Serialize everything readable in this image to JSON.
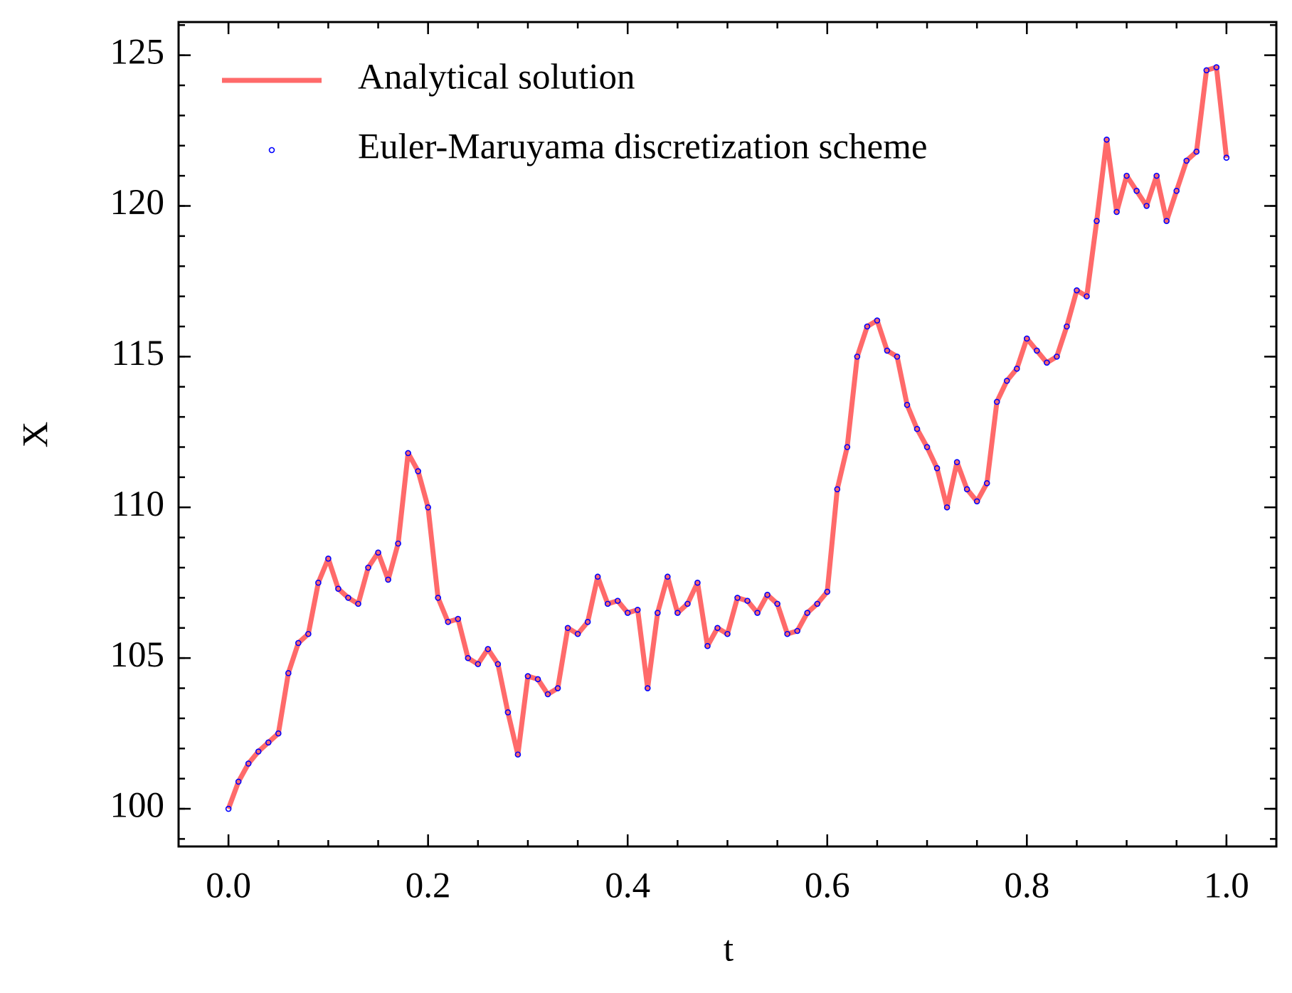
{
  "chart_data": {
    "type": "line",
    "xlabel": "t",
    "ylabel": "X",
    "x": [
      0,
      0.01,
      0.02,
      0.03,
      0.04,
      0.05,
      0.06,
      0.07,
      0.08,
      0.09,
      0.1,
      0.11,
      0.12,
      0.13,
      0.14,
      0.15,
      0.16,
      0.17,
      0.18,
      0.19,
      0.2,
      0.21,
      0.22,
      0.23,
      0.24,
      0.25,
      0.26,
      0.27,
      0.28,
      0.29,
      0.3,
      0.31,
      0.32,
      0.33,
      0.34,
      0.35,
      0.36,
      0.37,
      0.38,
      0.39,
      0.4,
      0.41,
      0.42,
      0.43,
      0.44,
      0.45,
      0.46,
      0.47,
      0.48,
      0.49,
      0.5,
      0.51,
      0.52,
      0.53,
      0.54,
      0.55,
      0.56,
      0.57,
      0.58,
      0.59,
      0.6,
      0.61,
      0.62,
      0.63,
      0.64,
      0.65,
      0.66,
      0.67,
      0.68,
      0.69,
      0.7,
      0.71,
      0.72,
      0.73,
      0.74,
      0.75,
      0.76,
      0.77,
      0.78,
      0.79,
      0.8,
      0.81,
      0.82,
      0.83,
      0.84,
      0.85,
      0.86,
      0.87,
      0.88,
      0.89,
      0.9,
      0.91,
      0.92,
      0.93,
      0.94,
      0.95,
      0.96,
      0.97,
      0.98,
      0.99,
      1.0
    ],
    "series": [
      {
        "name": "Analytical solution",
        "kind": "line",
        "color": "#ff5a5a",
        "values": [
          100,
          100.9,
          101.5,
          101.9,
          102.2,
          102.5,
          104.5,
          105.5,
          105.8,
          107.5,
          108.3,
          107.3,
          107.0,
          106.8,
          108.0,
          108.5,
          107.6,
          108.8,
          111.8,
          111.2,
          110.0,
          107.0,
          106.2,
          106.3,
          105.0,
          104.8,
          105.3,
          104.8,
          103.2,
          101.8,
          104.4,
          104.3,
          103.8,
          104.0,
          106.0,
          105.8,
          106.2,
          107.7,
          106.8,
          106.9,
          106.5,
          106.6,
          104.0,
          106.5,
          107.7,
          106.5,
          106.8,
          107.5,
          105.4,
          106.0,
          105.8,
          107.0,
          106.9,
          106.5,
          107.1,
          106.8,
          105.8,
          105.9,
          106.5,
          106.8,
          107.2,
          110.6,
          112.0,
          115.0,
          116.0,
          116.2,
          115.2,
          115.0,
          113.4,
          112.6,
          112.0,
          111.3,
          110.0,
          111.5,
          110.6,
          110.2,
          110.8,
          113.5,
          114.2,
          114.6,
          115.6,
          115.2,
          114.8,
          115.0,
          116.0,
          117.2,
          117.0,
          119.5,
          122.2,
          119.8,
          121.0,
          120.5,
          120.0,
          121.0,
          119.5,
          120.5,
          121.5,
          121.8,
          124.5,
          124.6,
          121.6
        ]
      },
      {
        "name": "Euler-Maruyama discretization scheme",
        "kind": "scatter",
        "color": "#0000ff",
        "values": [
          100,
          100.9,
          101.5,
          101.9,
          102.2,
          102.5,
          104.5,
          105.5,
          105.8,
          107.5,
          108.3,
          107.3,
          107.0,
          106.8,
          108.0,
          108.5,
          107.6,
          108.8,
          111.8,
          111.2,
          110.0,
          107.0,
          106.2,
          106.3,
          105.0,
          104.8,
          105.3,
          104.8,
          103.2,
          101.8,
          104.4,
          104.3,
          103.8,
          104.0,
          106.0,
          105.8,
          106.2,
          107.7,
          106.8,
          106.9,
          106.5,
          106.6,
          104.0,
          106.5,
          107.7,
          106.5,
          106.8,
          107.5,
          105.4,
          106.0,
          105.8,
          107.0,
          106.9,
          106.5,
          107.1,
          106.8,
          105.8,
          105.9,
          106.5,
          106.8,
          107.2,
          110.6,
          112.0,
          115.0,
          116.0,
          116.2,
          115.2,
          115.0,
          113.4,
          112.6,
          112.0,
          111.3,
          110.0,
          111.5,
          110.6,
          110.2,
          110.8,
          113.5,
          114.2,
          114.6,
          115.6,
          115.2,
          114.8,
          115.0,
          116.0,
          117.2,
          117.0,
          119.5,
          122.2,
          119.8,
          121.0,
          120.5,
          120.0,
          121.0,
          119.5,
          120.5,
          121.5,
          121.8,
          124.5,
          124.6,
          121.6
        ]
      }
    ],
    "xlim": [
      -0.05,
      1.05
    ],
    "xticks": [
      {
        "value": 0,
        "label": "0.0"
      },
      0.2,
      0.4,
      0.6,
      0.8,
      {
        "value": 1,
        "label": "1.0"
      }
    ],
    "ylim": [
      98.75,
      126.1
    ],
    "yticks": [
      100,
      105,
      110,
      115,
      120,
      125
    ],
    "grid": false,
    "legend": "upper left"
  }
}
